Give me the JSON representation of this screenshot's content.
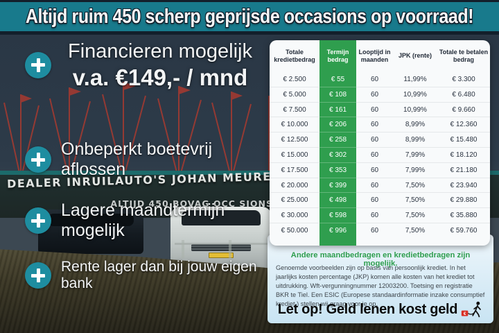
{
  "header": {
    "text": "Altijd ruim 450 scherp geprijsde occasions op voorraad!"
  },
  "benefits": [
    {
      "line1": "Financieren mogelijk",
      "line2": "v.a. €149,- / mnd"
    },
    {
      "text": "Onbeperkt boetevrij aflossen"
    },
    {
      "text": "Lagere maandtermijn mogelijk"
    },
    {
      "text": "Rente lager dan bij jouw eigen bank"
    }
  ],
  "photo": {
    "sign_main": "DEALER INRUILAUTO'S JOHAN MEURE",
    "sign_sub": "ALTIJD 450  BOVAG  OCC  SIONS"
  },
  "table": {
    "headers": [
      "Totale kredietbedrag",
      "Termijn bedrag",
      "Looptijd in maanden",
      "JPK (rente)",
      "Totale te betalen bedrag"
    ],
    "rows": [
      [
        "€ 2.500",
        "€ 55",
        "60",
        "11,99%",
        "€ 3.300"
      ],
      [
        "€ 5.000",
        "€ 108",
        "60",
        "10,99%",
        "€ 6.480"
      ],
      [
        "€ 7.500",
        "€ 161",
        "60",
        "10,99%",
        "€ 9.660"
      ],
      [
        "€ 10.000",
        "€ 206",
        "60",
        "8,99%",
        "€ 12.360"
      ],
      [
        "€ 12.500",
        "€ 258",
        "60",
        "8,99%",
        "€ 15.480"
      ],
      [
        "€ 15.000",
        "€ 302",
        "60",
        "7,99%",
        "€ 18.120"
      ],
      [
        "€ 17.500",
        "€ 353",
        "60",
        "7,99%",
        "€ 21.180"
      ],
      [
        "€ 20.000",
        "€ 399",
        "60",
        "7,50%",
        "€ 23.940"
      ],
      [
        "€ 25.000",
        "€ 498",
        "60",
        "7,50%",
        "€ 29.880"
      ],
      [
        "€ 30.000",
        "€ 598",
        "60",
        "7,50%",
        "€ 35.880"
      ],
      [
        "€ 50.000",
        "€ 996",
        "60",
        "7,50%",
        "€ 59.760"
      ]
    ]
  },
  "disclaimer": {
    "highlight": "Andere maandbedragen en kredietbedragen zijn mogelijk.",
    "body": "Genoemde voorbeelden zijn op basis van persoonlijk krediet. In het jaarlijks kosten percentage (JKP) komen alle kosten van het krediet tot uitdrukking. Wft-vergunningnummer 12003200. Toetsing en registratie BKR te Tiel. Een ESIC (Europese standaardinformatie inzake consumptief krediet ) stellen wij graag voor je op.",
    "warning": "Let op! Geld lenen kost geld"
  },
  "icons": {
    "plus_bullet": "plus-icon",
    "warning_logo": "geld-lenen-kost-geld-walking-man"
  },
  "colors": {
    "header_teal": "#187a8c",
    "navy_border": "#131f2b",
    "table_green": "#2f9e4e",
    "icon_teal": "#1e8da0",
    "info_panel_blue": "#d7ebf6",
    "warning_red": "#d93025"
  }
}
